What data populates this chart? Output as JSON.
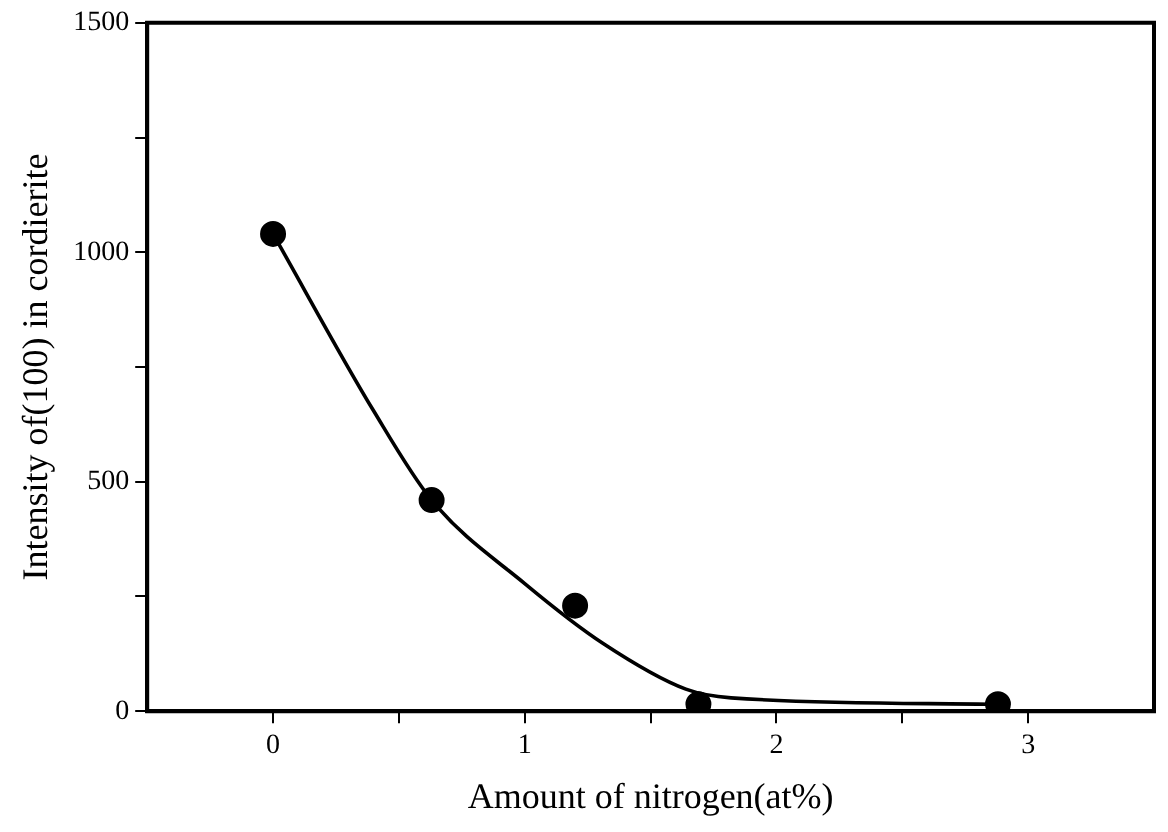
{
  "chart_data": {
    "type": "scatter",
    "xlabel": "Amount of nitrogen(at%)",
    "ylabel": "Intensity of(100) in cordierite",
    "x": [
      0,
      0.63,
      1.2,
      1.69,
      2.88
    ],
    "values": [
      1040,
      460,
      230,
      15,
      15
    ],
    "color": "#000000",
    "marker": "circle",
    "series": [
      {
        "type": "line",
        "x": [
          0,
          0.4,
          0.63,
          1.0,
          1.31,
          1.64,
          1.82,
          2.88
        ],
        "values": [
          1040,
          654,
          460,
          278,
          148,
          48,
          29,
          15
        ],
        "color": "#000000",
        "marker": "none",
        "line_style": "solid"
      }
    ],
    "xlim": [
      -0.5,
      3.5
    ],
    "xticks": [
      0,
      {
        "value": 0.5,
        "label": null
      },
      1,
      {
        "value": 1.5,
        "label": null
      },
      2,
      {
        "value": 2.5,
        "label": null
      },
      3
    ],
    "ylim": [
      0,
      1500
    ],
    "yticks": [
      0,
      {
        "value": 250,
        "label": null
      },
      500,
      {
        "value": 750,
        "label": null
      },
      1000,
      {
        "value": 1250,
        "label": null
      },
      1500
    ],
    "grid": false,
    "legend": false
  }
}
